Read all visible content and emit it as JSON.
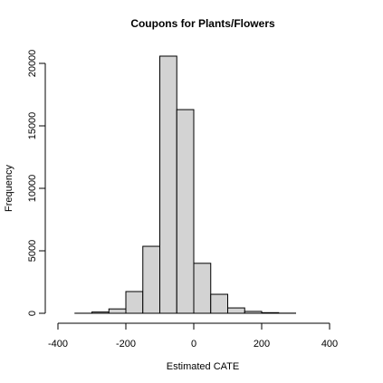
{
  "chart_data": {
    "type": "histogram",
    "title": "Coupons for Plants/Flowers",
    "x_label": "Estimated CATE",
    "y_label": "Frequency",
    "bins": [
      -400,
      -350,
      -300,
      -250,
      -200,
      -150,
      -100,
      -50,
      0,
      50,
      100,
      150,
      200,
      250,
      300,
      350,
      400,
      450
    ],
    "values": [
      0,
      5,
      100,
      350,
      1740,
      5360,
      20580,
      16300,
      4000,
      1520,
      430,
      150,
      50,
      10,
      0,
      0,
      0
    ],
    "color": "#d3d3d3",
    "xlim": [
      -400,
      400
    ],
    "xticks": [
      -400,
      -200,
      0,
      200,
      400
    ],
    "ylim": [
      0,
      20000
    ],
    "yticks": [
      0,
      5000,
      10000,
      15000,
      20000
    ]
  }
}
